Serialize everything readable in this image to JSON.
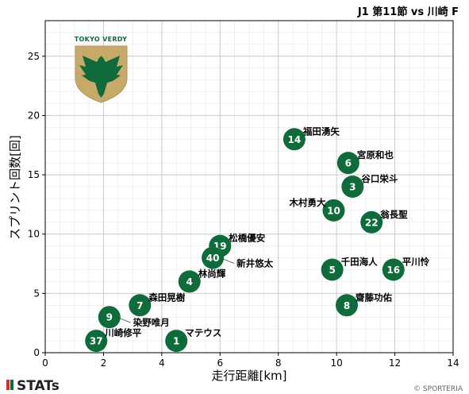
{
  "title": "J1 第11節 vs 川崎 F",
  "footer": {
    "brand": "STATs",
    "copyright": "© SPORTERIA"
  },
  "logo": {
    "text": "TOKYO VERDY",
    "icon": "tokyo-verdy-crest"
  },
  "colors": {
    "marker": "#0f6b3a",
    "marker_text": "#ffffff",
    "grid": "#cccccc",
    "grid_minor": "#e6e6e6",
    "logo_gold": "#c7a96a"
  },
  "chart_data": {
    "type": "scatter",
    "xlabel": "走行距離[km]",
    "ylabel": "スプリント回数[回]",
    "xlim": [
      0,
      14
    ],
    "ylim": [
      0,
      28
    ],
    "xticks": [
      0,
      2,
      4,
      6,
      8,
      10,
      12,
      14
    ],
    "yticks": [
      0,
      5,
      10,
      15,
      20,
      25
    ],
    "grid": true,
    "points": [
      {
        "number": "14",
        "name": "福田湧矢",
        "x": 8.55,
        "y": 18,
        "label_pos": "upper-right"
      },
      {
        "number": "6",
        "name": "宮原和也",
        "x": 10.4,
        "y": 16,
        "label_pos": "upper-right"
      },
      {
        "number": "3",
        "name": "谷口栄斗",
        "x": 10.55,
        "y": 14,
        "label_pos": "upper-right"
      },
      {
        "number": "10",
        "name": "木村勇大",
        "x": 9.9,
        "y": 12,
        "label_pos": "upper-left"
      },
      {
        "number": "22",
        "name": "翁長聖",
        "x": 11.2,
        "y": 11,
        "label_pos": "upper-right"
      },
      {
        "number": "19",
        "name": "松橋優安",
        "x": 6.0,
        "y": 9,
        "label_pos": "upper-right"
      },
      {
        "number": "40",
        "name": "新井悠太",
        "x": 5.75,
        "y": 8,
        "label_pos": "lower-right-far"
      },
      {
        "number": "5",
        "name": "千田海人",
        "x": 9.85,
        "y": 7,
        "label_pos": "upper-right"
      },
      {
        "number": "16",
        "name": "平川怜",
        "x": 11.95,
        "y": 7,
        "label_pos": "upper-right"
      },
      {
        "number": "4",
        "name": "林尚輝",
        "x": 4.95,
        "y": 6,
        "label_pos": "upper-right"
      },
      {
        "number": "7",
        "name": "森田晃樹",
        "x": 3.25,
        "y": 4,
        "label_pos": "upper-right"
      },
      {
        "number": "8",
        "name": "齋藤功佑",
        "x": 10.35,
        "y": 4,
        "label_pos": "upper-right"
      },
      {
        "number": "9",
        "name": "染野唯月",
        "x": 2.2,
        "y": 3,
        "label_pos": "lower-right-far"
      },
      {
        "number": "37",
        "name": "川崎修平",
        "x": 1.75,
        "y": 1,
        "label_pos": "upper-right"
      },
      {
        "number": "1",
        "name": "マテウス",
        "x": 4.5,
        "y": 1,
        "label_pos": "upper-right"
      }
    ]
  }
}
